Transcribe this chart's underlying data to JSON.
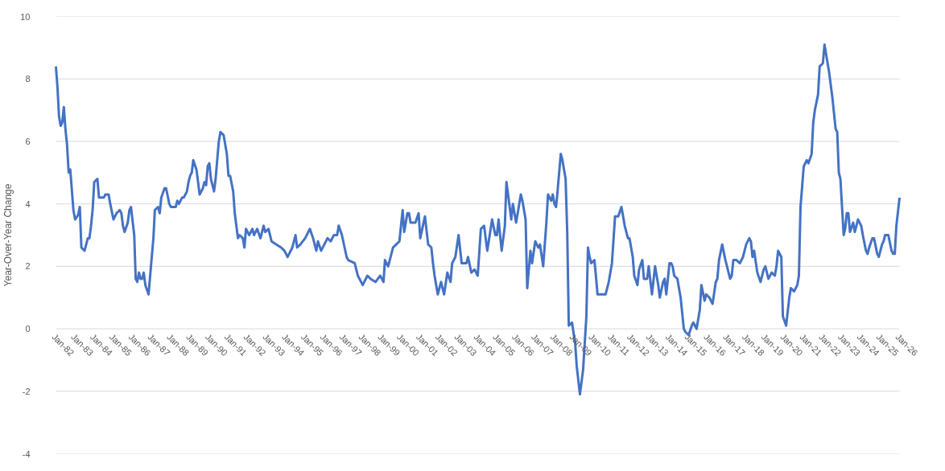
{
  "chart_data": {
    "type": "line",
    "ylabel": "Year-Over-Year Change",
    "xlim": [
      "1982-01",
      "2026-01"
    ],
    "ylim": [
      -4,
      10
    ],
    "yticks": [
      -4,
      -2,
      0,
      2,
      4,
      6,
      8,
      10
    ],
    "xticks": [
      {
        "value": "1982-01",
        "label": "Jan-82"
      },
      {
        "value": "1983-01",
        "label": "Jan-83"
      },
      {
        "value": "1984-01",
        "label": "Jan-84"
      },
      {
        "value": "1985-01",
        "label": "Jan-85"
      },
      {
        "value": "1986-01",
        "label": "Jan-86"
      },
      {
        "value": "1987-01",
        "label": "Jan-87"
      },
      {
        "value": "1988-01",
        "label": "Jan-88"
      },
      {
        "value": "1989-01",
        "label": "Jan-89"
      },
      {
        "value": "1990-01",
        "label": "Jan-90"
      },
      {
        "value": "1991-01",
        "label": "Jan-91"
      },
      {
        "value": "1992-01",
        "label": "Jan-92"
      },
      {
        "value": "1993-01",
        "label": "Jan-93"
      },
      {
        "value": "1994-01",
        "label": "Jan-94"
      },
      {
        "value": "1995-01",
        "label": "Jan-95"
      },
      {
        "value": "1996-01",
        "label": "Jan-96"
      },
      {
        "value": "1997-01",
        "label": "Jan-97"
      },
      {
        "value": "1998-01",
        "label": "Jan-98"
      },
      {
        "value": "1999-01",
        "label": "Jan-99"
      },
      {
        "value": "2000-01",
        "label": "Jan-00"
      },
      {
        "value": "2001-01",
        "label": "Jan-01"
      },
      {
        "value": "2002-01",
        "label": "Jan-02"
      },
      {
        "value": "2003-01",
        "label": "Jan-03"
      },
      {
        "value": "2004-01",
        "label": "Jan-04"
      },
      {
        "value": "2005-01",
        "label": "Jan-05"
      },
      {
        "value": "2006-01",
        "label": "Jan-06"
      },
      {
        "value": "2007-01",
        "label": "Jan-07"
      },
      {
        "value": "2008-01",
        "label": "Jan-08"
      },
      {
        "value": "2009-01",
        "label": "Jan-09"
      },
      {
        "value": "2010-01",
        "label": "Jan-10"
      },
      {
        "value": "2011-01",
        "label": "Jan-11"
      },
      {
        "value": "2012-01",
        "label": "Jan-12"
      },
      {
        "value": "2013-01",
        "label": "Jan-13"
      },
      {
        "value": "2014-01",
        "label": "Jan-14"
      },
      {
        "value": "2015-01",
        "label": "Jan-15"
      },
      {
        "value": "2016-01",
        "label": "Jan-16"
      },
      {
        "value": "2017-01",
        "label": "Jan-17"
      },
      {
        "value": "2018-01",
        "label": "Jan-18"
      },
      {
        "value": "2019-01",
        "label": "Jan-19"
      },
      {
        "value": "2020-01",
        "label": "Jan-20"
      },
      {
        "value": "2021-01",
        "label": "Jan-21"
      },
      {
        "value": "2022-01",
        "label": "Jan-22"
      },
      {
        "value": "2023-01",
        "label": "Jan-23"
      },
      {
        "value": "2024-01",
        "label": "Jan-24"
      },
      {
        "value": "2025-01",
        "label": "Jan-25"
      },
      {
        "value": "2026-01",
        "label": "Jan-26"
      }
    ],
    "grid": "y",
    "line_style": "solid",
    "x": [
      "1982-01",
      "1982-02",
      "1982-03",
      "1982-04",
      "1982-05",
      "1982-06",
      "1982-07",
      "1982-08",
      "1982-09",
      "1982-10",
      "1982-12",
      "1983-01",
      "1983-03",
      "1983-04",
      "1983-05",
      "1983-07",
      "1983-09",
      "1983-10",
      "1983-11",
      "1983-12",
      "1984-01",
      "1984-03",
      "1984-04",
      "1984-07",
      "1984-08",
      "1984-10",
      "1984-11",
      "1985-01",
      "1985-03",
      "1985-05",
      "1985-06",
      "1985-07",
      "1985-08",
      "1985-10",
      "1985-11",
      "1985-12",
      "1986-02",
      "1986-03",
      "1986-04",
      "1986-05",
      "1986-06",
      "1986-07",
      "1986-08",
      "1986-09",
      "1986-11",
      "1986-12",
      "1987-02",
      "1987-03",
      "1987-05",
      "1987-06",
      "1987-07",
      "1987-09",
      "1987-10",
      "1987-12",
      "1988-01",
      "1988-04",
      "1988-05",
      "1988-06",
      "1988-08",
      "1988-09",
      "1988-11",
      "1988-12",
      "1989-01",
      "1989-02",
      "1989-03",
      "1989-05",
      "1989-06",
      "1989-07",
      "1989-09",
      "1989-10",
      "1989-11",
      "1989-12",
      "1990-01",
      "1990-02",
      "1990-04",
      "1990-05",
      "1990-07",
      "1990-08",
      "1990-10",
      "1990-12",
      "1991-01",
      "1991-02",
      "1991-04",
      "1991-05",
      "1991-07",
      "1991-08",
      "1991-10",
      "1991-11",
      "1991-12",
      "1992-02",
      "1992-04",
      "1992-05",
      "1992-07",
      "1992-09",
      "1992-11",
      "1992-12",
      "1993-02",
      "1993-04",
      "1993-07",
      "1993-10",
      "1993-12",
      "1994-02",
      "1994-05",
      "1994-07",
      "1994-08",
      "1994-10",
      "1995-01",
      "1995-04",
      "1995-06",
      "1995-08",
      "1995-09",
      "1995-11",
      "1996-01",
      "1996-03",
      "1996-05",
      "1996-07",
      "1996-09",
      "1996-10",
      "1996-12",
      "1997-03",
      "1997-04",
      "1997-08",
      "1997-10",
      "1998-01",
      "1998-04",
      "1998-06",
      "1998-09",
      "1998-12",
      "1999-02",
      "1999-03",
      "1999-05",
      "1999-08",
      "1999-10",
      "1999-12",
      "2000-02",
      "2000-03",
      "2000-05",
      "2000-06",
      "2000-07",
      "2000-10",
      "2000-12",
      "2001-01",
      "2001-04",
      "2001-06",
      "2001-08",
      "2001-09",
      "2001-10",
      "2001-12",
      "2002-02",
      "2002-04",
      "2002-06",
      "2002-08",
      "2002-09",
      "2002-11",
      "2003-01",
      "2003-03",
      "2003-06",
      "2003-07",
      "2003-09",
      "2003-11",
      "2004-01",
      "2004-03",
      "2004-05",
      "2004-07",
      "2004-10",
      "2004-12",
      "2005-01",
      "2005-02",
      "2005-04",
      "2005-06",
      "2005-07",
      "2005-08",
      "2005-10",
      "2005-11",
      "2006-01",
      "2006-02",
      "2006-04",
      "2006-05",
      "2006-07",
      "2006-08",
      "2006-10",
      "2006-11",
      "2007-01",
      "2007-03",
      "2007-04",
      "2007-06",
      "2007-08",
      "2007-09",
      "2007-11",
      "2007-12",
      "2008-01",
      "2008-02",
      "2008-03",
      "2008-05",
      "2008-06",
      "2008-08",
      "2008-09",
      "2008-10",
      "2008-12",
      "2009-02",
      "2009-03",
      "2009-05",
      "2009-07",
      "2009-09",
      "2009-10",
      "2009-11",
      "2009-12",
      "2010-02",
      "2010-03",
      "2010-04",
      "2010-07",
      "2010-09",
      "2010-11",
      "2011-01",
      "2011-03",
      "2011-05",
      "2011-07",
      "2011-09",
      "2011-11",
      "2011-12",
      "2012-02",
      "2012-03",
      "2012-05",
      "2012-06",
      "2012-08",
      "2012-09",
      "2012-11",
      "2012-12",
      "2013-02",
      "2013-04",
      "2013-06",
      "2013-07",
      "2013-09",
      "2013-10",
      "2013-11",
      "2014-01",
      "2014-02",
      "2014-03",
      "2014-04",
      "2014-06",
      "2014-08",
      "2014-10",
      "2014-11",
      "2015-01",
      "2015-03",
      "2015-04",
      "2015-06",
      "2015-08",
      "2015-09",
      "2015-11",
      "2015-12",
      "2016-02",
      "2016-04",
      "2016-06",
      "2016-07",
      "2016-08",
      "2016-10",
      "2016-12",
      "2017-03",
      "2017-04",
      "2017-05",
      "2017-07",
      "2017-09",
      "2017-11",
      "2018-01",
      "2018-03",
      "2018-04",
      "2018-05",
      "2018-06",
      "2018-08",
      "2018-10",
      "2018-12",
      "2019-01",
      "2019-03",
      "2019-05",
      "2019-07",
      "2019-08",
      "2019-09",
      "2019-11",
      "2019-12",
      "2020-02",
      "2020-04",
      "2020-05",
      "2020-07",
      "2020-09",
      "2020-10",
      "2020-11",
      "2021-01",
      "2021-03",
      "2021-04",
      "2021-06",
      "2021-07",
      "2021-08",
      "2021-10",
      "2021-11",
      "2022-01",
      "2022-02",
      "2022-04",
      "2022-05",
      "2022-07",
      "2022-09",
      "2022-10",
      "2022-11",
      "2022-12",
      "2023-02",
      "2023-03",
      "2023-04",
      "2023-05",
      "2023-06",
      "2023-08",
      "2023-09",
      "2023-11",
      "2024-01",
      "2024-02",
      "2024-04",
      "2024-05",
      "2024-06",
      "2024-08",
      "2024-09",
      "2024-11",
      "2024-12",
      "2025-02",
      "2025-03",
      "2025-04",
      "2025-06",
      "2025-08",
      "2025-09",
      "2025-10",
      "2025-11",
      "2026-01"
    ],
    "series": [
      {
        "color": "#4472c4",
        "values": [
          8.4,
          7.7,
          6.8,
          6.5,
          6.6,
          7.1,
          6.4,
          5.9,
          5.0,
          5.1,
          3.8,
          3.5,
          3.65,
          3.9,
          2.6,
          2.5,
          2.9,
          2.9,
          3.3,
          3.8,
          4.7,
          4.8,
          4.2,
          4.2,
          4.3,
          4.3,
          4.0,
          3.5,
          3.7,
          3.8,
          3.7,
          3.3,
          3.1,
          3.4,
          3.8,
          3.9,
          3.0,
          1.6,
          1.5,
          1.8,
          1.6,
          1.6,
          1.8,
          1.4,
          1.1,
          1.7,
          2.9,
          3.8,
          3.9,
          3.7,
          4.2,
          4.5,
          4.5,
          4.0,
          3.9,
          3.9,
          4.1,
          4.0,
          4.2,
          4.2,
          4.4,
          4.7,
          4.9,
          5.0,
          5.4,
          5.1,
          4.7,
          4.3,
          4.5,
          4.7,
          4.6,
          5.2,
          5.3,
          4.8,
          4.4,
          4.8,
          6.0,
          6.3,
          6.2,
          5.6,
          4.9,
          4.9,
          4.4,
          3.7,
          2.9,
          3.0,
          2.9,
          2.6,
          3.2,
          3.0,
          3.2,
          3.0,
          3.2,
          2.9,
          3.3,
          3.1,
          3.2,
          2.8,
          2.7,
          2.6,
          2.5,
          2.3,
          2.6,
          3.0,
          2.6,
          2.7,
          2.9,
          3.2,
          2.9,
          2.5,
          2.8,
          2.5,
          2.7,
          2.9,
          2.8,
          3.0,
          3.0,
          3.3,
          3.0,
          2.3,
          2.2,
          2.1,
          1.7,
          1.4,
          1.7,
          1.6,
          1.5,
          1.7,
          1.5,
          2.2,
          2.0,
          2.6,
          2.7,
          2.8,
          3.8,
          3.1,
          3.7,
          3.7,
          3.4,
          3.4,
          3.7,
          2.9,
          3.6,
          2.7,
          2.6,
          2.1,
          1.7,
          1.1,
          1.5,
          1.1,
          1.8,
          1.5,
          2.1,
          2.3,
          3.0,
          2.1,
          2.1,
          2.3,
          1.8,
          1.9,
          1.7,
          3.2,
          3.3,
          2.5,
          3.5,
          3.0,
          3.0,
          3.5,
          2.5,
          3.3,
          4.7,
          4.3,
          3.5,
          4.0,
          3.4,
          3.7,
          4.3,
          4.1,
          3.5,
          1.3,
          2.5,
          2.1,
          2.8,
          2.6,
          2.7,
          2.0,
          3.4,
          4.3,
          4.1,
          4.3,
          4.0,
          3.9,
          4.4,
          5.6,
          5.4,
          4.8,
          3.1,
          0.1,
          0.2,
          -0.5,
          -1.2,
          -2.1,
          -1.3,
          0.4,
          2.6,
          2.3,
          2.1,
          2.2,
          1.7,
          1.1,
          1.1,
          1.1,
          1.5,
          2.1,
          3.6,
          3.6,
          3.9,
          3.3,
          2.9,
          2.9,
          2.3,
          1.7,
          1.4,
          1.9,
          2.2,
          1.6,
          1.6,
          2.0,
          1.1,
          2.0,
          1.4,
          1.0,
          1.5,
          1.6,
          1.1,
          2.1,
          2.1,
          2.0,
          1.7,
          1.6,
          1.0,
          0.0,
          -0.1,
          -0.2,
          0.1,
          0.2,
          0.0,
          0.6,
          1.4,
          0.9,
          1.1,
          1.0,
          0.8,
          1.5,
          1.6,
          2.2,
          2.7,
          2.2,
          1.6,
          1.7,
          2.2,
          2.2,
          2.1,
          2.3,
          2.7,
          2.9,
          2.8,
          2.3,
          2.5,
          1.8,
          1.5,
          1.9,
          2.0,
          1.6,
          1.8,
          1.7,
          2.0,
          2.5,
          2.3,
          0.4,
          0.1,
          1.0,
          1.3,
          1.2,
          1.4,
          1.7,
          3.9,
          5.2,
          5.4,
          5.3,
          5.6,
          6.6,
          7.0,
          7.5,
          8.4,
          8.5,
          9.1,
          8.5,
          8.2,
          7.4,
          6.4,
          6.3,
          5.0,
          4.8,
          3.0,
          3.2,
          3.7,
          3.7,
          3.1,
          3.4,
          3.1,
          3.5,
          3.3,
          3.0,
          2.5,
          2.4,
          2.6,
          2.9,
          2.9,
          2.4,
          2.3,
          2.7,
          2.8,
          3.0,
          3.0,
          2.5,
          2.4,
          2.4,
          3.3,
          4.2
        ]
      }
    ]
  }
}
